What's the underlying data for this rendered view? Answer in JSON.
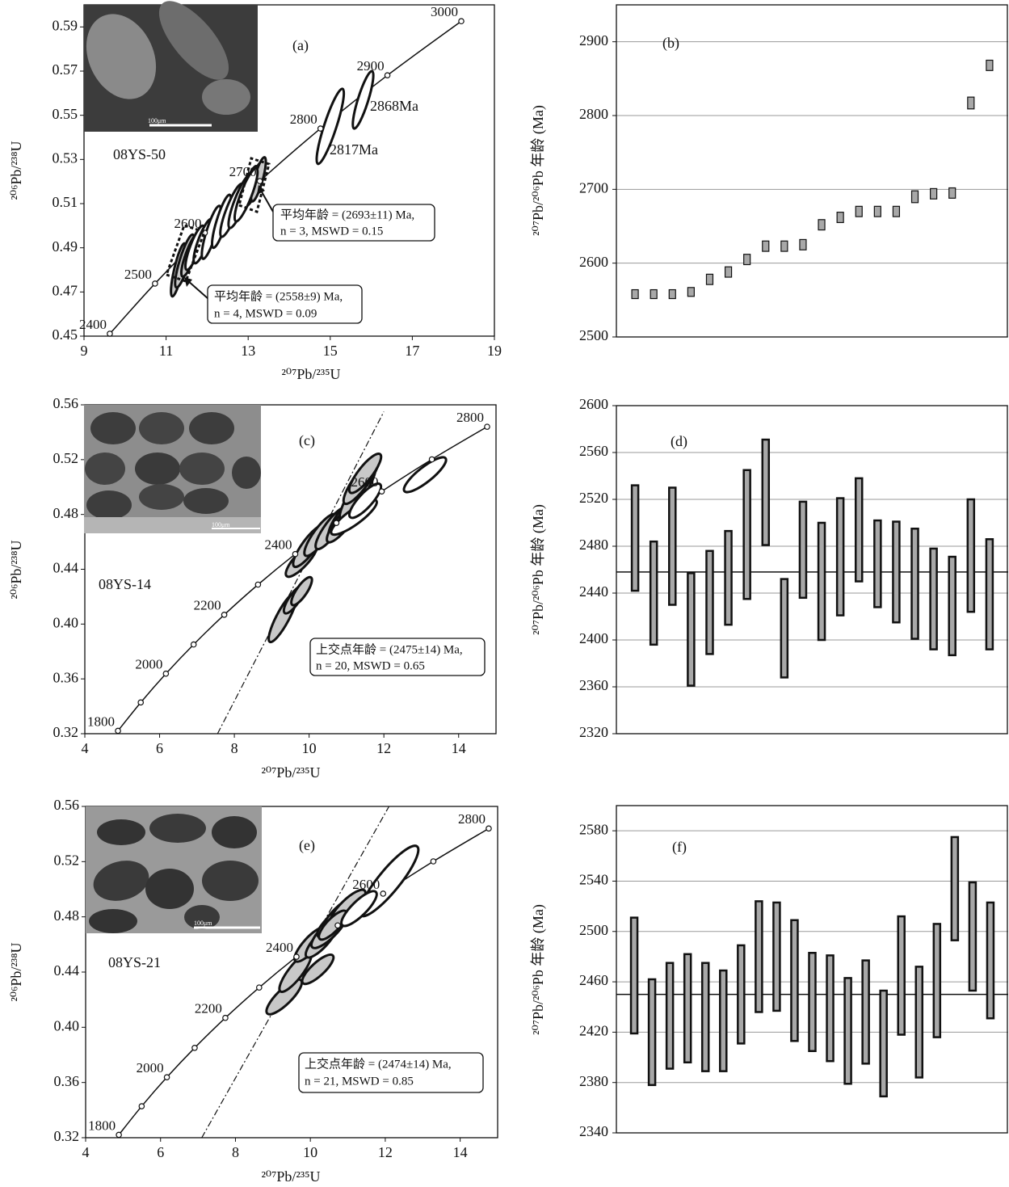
{
  "chart_data": [
    {
      "type": "concordia",
      "panel": "(a)",
      "sample": "08YS-50",
      "x_label": "²⁰⁷Pb/²³⁵U",
      "y_label": "²⁰⁶Pb/²³⁸U",
      "xlim": [
        9,
        19
      ],
      "ylim": [
        0.45,
        0.6
      ],
      "xticks": [
        9,
        11,
        13,
        15,
        17,
        19
      ],
      "yticks": [
        0.45,
        0.47,
        0.49,
        0.51,
        0.53,
        0.55,
        0.57,
        0.59
      ],
      "concordia": {
        "x": [
          9.629,
          10.73,
          11.943,
          13.284,
          14.762,
          16.393,
          18.193
        ],
        "y": [
          0.4511,
          0.4738,
          0.4968,
          0.5202,
          0.544,
          0.5681,
          0.5926
        ],
        "labels": [
          "2400",
          "2500",
          "2600",
          "2700",
          "2800",
          "2900",
          "3000"
        ]
      },
      "ellipses": {
        "x": [
          11.3,
          11.45,
          11.6,
          13.0,
          13.15,
          13.25,
          11.7,
          11.9,
          12.1,
          12.35,
          12.6,
          12.8,
          12.95,
          15.0,
          15.8
        ],
        "y": [
          0.48,
          0.484,
          0.487,
          0.516,
          0.519,
          0.521,
          0.49,
          0.493,
          0.497,
          0.502,
          0.507,
          0.511,
          0.514,
          0.545,
          0.557
        ],
        "x_err": [
          0.15,
          0.2,
          0.2,
          0.2,
          0.2,
          0.15,
          0.2,
          0.2,
          0.2,
          0.2,
          0.25,
          0.25,
          0.25,
          0.3,
          0.22
        ],
        "y_err": [
          0.012,
          0.012,
          0.01,
          0.011,
          0.01,
          0.01,
          0.01,
          0.01,
          0.012,
          0.012,
          0.012,
          0.012,
          0.012,
          0.017,
          0.013
        ],
        "filled": [
          true,
          true,
          true,
          true,
          true,
          true,
          false,
          false,
          false,
          false,
          false,
          false,
          false,
          false,
          false
        ]
      },
      "annotations": [
        "2817Ma",
        "2868Ma"
      ],
      "boxes": [
        [
          "平均年龄 = (2693±11) Ma,",
          "n = 3, MSWD = 0.15"
        ],
        [
          "平均年龄 = (2558±9) Ma,",
          "n = 4, MSWD = 0.09"
        ]
      ],
      "inset_scale": "100μm"
    },
    {
      "type": "range",
      "panel": "(b)",
      "y_label": "²⁰⁷Pb/²⁰⁶Pb 年龄 (Ma)",
      "ylim": [
        2500,
        2950
      ],
      "yticks": [
        2500,
        2600,
        2700,
        2800,
        2900
      ],
      "grid": true,
      "color": "#a8a8a8",
      "values": [
        2558,
        2558,
        2558,
        2561,
        2578,
        2588,
        2605,
        2623,
        2623,
        2625,
        2652,
        2662,
        2670,
        2670,
        2670,
        2690,
        2694,
        2695,
        2817,
        2868
      ],
      "errors": [
        6,
        6,
        6,
        6,
        7,
        7,
        7,
        7,
        7,
        7,
        7,
        7,
        7,
        7,
        7,
        8,
        7,
        7,
        8,
        7
      ]
    },
    {
      "type": "concordia",
      "panel": "(c)",
      "sample": "08YS-14",
      "x_label": "²⁰⁷Pb/²³⁵U",
      "y_label": "²⁰⁶Pb/²³⁸U",
      "xlim": [
        4,
        15
      ],
      "ylim": [
        0.32,
        0.56
      ],
      "xticks": [
        4,
        6,
        8,
        10,
        12,
        14
      ],
      "yticks": [
        0.32,
        0.36,
        {
          "value": 0.4,
          "label": "0.40"
        },
        0.44,
        0.48,
        0.52,
        0.56
      ],
      "concordia": {
        "x": [
          4.887,
          5.496,
          6.169,
          6.911,
          7.73,
          8.633,
          9.629,
          10.73,
          11.943,
          13.284,
          14.762
        ],
        "y": [
          0.3221,
          0.3428,
          0.3638,
          0.3851,
          0.4068,
          0.4288,
          0.4511,
          0.4738,
          0.4968,
          0.5202,
          0.544
        ],
        "labels": [
          "1800",
          null,
          "2000",
          null,
          "2200",
          null,
          "2400",
          null,
          "2600",
          null,
          "2800"
        ]
      },
      "discordia": {
        "x": [
          7.55,
          12.0
        ],
        "y": [
          0.32,
          0.555
        ]
      },
      "ellipses": {
        "x": [
          9.3,
          9.6,
          9.8,
          9.8,
          10.0,
          10.3,
          10.6,
          11.0,
          10.9,
          11.3,
          11.4,
          11.5,
          13.1,
          11.2,
          11.5
        ],
        "y": [
          0.405,
          0.418,
          0.424,
          0.447,
          0.457,
          0.465,
          0.47,
          0.48,
          0.474,
          0.496,
          0.505,
          0.51,
          0.509,
          0.478,
          0.49
        ],
        "x_err": [
          0.35,
          0.25,
          0.25,
          0.4,
          0.4,
          0.4,
          0.4,
          0.45,
          0.4,
          0.45,
          0.45,
          0.4,
          0.55,
          0.6,
          0.4
        ],
        "y_err": [
          0.018,
          0.01,
          0.01,
          0.012,
          0.015,
          0.015,
          0.015,
          0.016,
          0.014,
          0.02,
          0.017,
          0.014,
          0.012,
          0.012,
          0.012
        ],
        "filled": [
          true,
          true,
          true,
          true,
          true,
          true,
          true,
          true,
          true,
          true,
          true,
          true,
          false,
          false,
          false
        ]
      },
      "boxes": [
        [
          "上交点年龄 = (2475±14) Ma,",
          "n = 20, MSWD = 0.65"
        ]
      ],
      "inset_scale": "100μm"
    },
    {
      "type": "range",
      "panel": "(d)",
      "y_label": "²⁰⁷Pb/²⁰⁶Pb 年龄 (Ma)",
      "ylim": [
        2320,
        2600
      ],
      "yticks": [
        2320,
        2360,
        2400,
        2440,
        2480,
        2520,
        2560,
        2600
      ],
      "grid": true,
      "color": "#a8a8a8",
      "mean": 2458,
      "values": [
        2487,
        2440,
        2480,
        2409,
        2432,
        2453,
        2490,
        2526,
        2410,
        2477,
        2450,
        2471,
        2494,
        2465,
        2458,
        2448,
        2435,
        2429,
        2472,
        2439
      ],
      "errors": [
        45,
        44,
        50,
        48,
        44,
        40,
        55,
        45,
        42,
        41,
        50,
        50,
        44,
        37,
        43,
        47,
        43,
        42,
        48,
        47
      ]
    },
    {
      "type": "concordia",
      "panel": "(e)",
      "sample": "08YS-21",
      "x_label": "²⁰⁷Pb/²³⁵U",
      "y_label": "²⁰⁶Pb/²³⁸U",
      "xlim": [
        4,
        15
      ],
      "ylim": [
        0.32,
        0.56
      ],
      "xticks": [
        4,
        6,
        8,
        10,
        12,
        14
      ],
      "yticks": [
        0.32,
        0.36,
        {
          "value": 0.4,
          "label": "0.40"
        },
        0.44,
        0.48,
        0.52,
        0.56
      ],
      "concordia": {
        "x": [
          4.887,
          5.496,
          6.169,
          6.911,
          7.73,
          8.633,
          9.629,
          10.73,
          11.943,
          13.284,
          14.762
        ],
        "y": [
          0.3221,
          0.3428,
          0.3638,
          0.3851,
          0.4068,
          0.4288,
          0.4511,
          0.4738,
          0.4968,
          0.5202,
          0.544
        ],
        "labels": [
          "1800",
          null,
          "2000",
          null,
          "2200",
          null,
          "2400",
          null,
          "2600",
          null,
          "2800"
        ]
      },
      "discordia": {
        "x": [
          7.1,
          12.1
        ],
        "y": [
          0.32,
          0.56
        ]
      },
      "ellipses": {
        "x": [
          9.3,
          9.6,
          10.2,
          10.0,
          10.3,
          10.5,
          10.7,
          10.8,
          11.0,
          10.6,
          12.1,
          11.3
        ],
        "y": [
          0.422,
          0.44,
          0.442,
          0.46,
          0.463,
          0.47,
          0.478,
          0.482,
          0.487,
          0.474,
          0.506,
          0.486
        ],
        "x_err": [
          0.45,
          0.4,
          0.4,
          0.4,
          0.4,
          0.45,
          0.5,
          0.45,
          0.45,
          0.35,
          0.75,
          0.45
        ],
        "y_err": [
          0.012,
          0.014,
          0.01,
          0.012,
          0.012,
          0.012,
          0.012,
          0.012,
          0.012,
          0.01,
          0.025,
          0.012
        ],
        "filled": [
          true,
          true,
          true,
          true,
          true,
          true,
          true,
          true,
          true,
          true,
          false,
          false
        ]
      },
      "boxes": [
        [
          "上交点年龄 = (2474±14) Ma,",
          "n = 21, MSWD = 0.85"
        ]
      ],
      "inset_scale": "100μm"
    },
    {
      "type": "range",
      "panel": "(f)",
      "y_label": "²⁰⁷Pb/²⁰⁶Pb 年龄 (Ma)",
      "ylim": [
        2340,
        2600
      ],
      "yticks": [
        2340,
        2380,
        2420,
        2460,
        2500,
        2540,
        2580
      ],
      "grid": true,
      "color": "#a8a8a8",
      "mean": 2450,
      "values": [
        2465,
        2420,
        2433,
        2439,
        2432,
        2429,
        2450,
        2480,
        2480,
        2461,
        2444,
        2439,
        2421,
        2436,
        2411,
        2465,
        2428,
        2461,
        2534,
        2496,
        2477
      ],
      "errors": [
        46,
        42,
        42,
        43,
        43,
        40,
        39,
        44,
        43,
        48,
        39,
        42,
        42,
        41,
        42,
        47,
        44,
        45,
        41,
        43,
        46
      ]
    }
  ]
}
